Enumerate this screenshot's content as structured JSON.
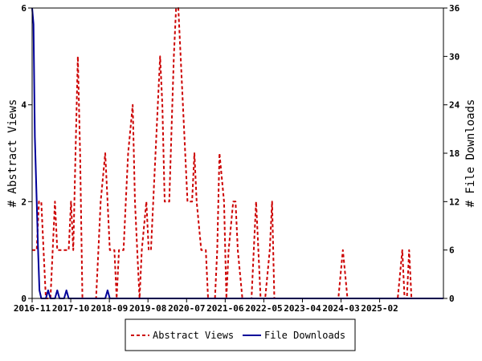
{
  "chart_data": {
    "type": "line",
    "x_tick_labels": [
      "2016-11",
      "2017-10",
      "2018-09",
      "2019-08",
      "2020-07",
      "2021-06",
      "2022-05",
      "2023-04",
      "2024-03",
      "2025-02"
    ],
    "left_axis": {
      "label": "# Abstract Views",
      "ylim": [
        0,
        6
      ],
      "ticks": [
        "0",
        "2",
        "4",
        "6"
      ]
    },
    "right_axis": {
      "label": "# File Downloads",
      "ylim": [
        0,
        36
      ],
      "ticks": [
        "0",
        "6",
        "12",
        "18",
        "24",
        "30",
        "36"
      ]
    },
    "legend": {
      "placement": "bottom-center"
    },
    "series": [
      {
        "name": "Abstract Views",
        "axis": "left",
        "color": "#cc0000",
        "style": "dashed",
        "points": [
          [
            0,
            1
          ],
          [
            1,
            1
          ],
          [
            1.5,
            2
          ],
          [
            2,
            2
          ],
          [
            2.5,
            1
          ],
          [
            3,
            0
          ],
          [
            4,
            0
          ],
          [
            4.5,
            1
          ],
          [
            5,
            2
          ],
          [
            5.5,
            1
          ],
          [
            6,
            1
          ],
          [
            7,
            1
          ],
          [
            8,
            1
          ],
          [
            8.5,
            2
          ],
          [
            9,
            1
          ],
          [
            9.5,
            3
          ],
          [
            10,
            5
          ],
          [
            10.5,
            3
          ],
          [
            11,
            0
          ],
          [
            14,
            0
          ],
          [
            14.5,
            1
          ],
          [
            15,
            2
          ],
          [
            16,
            3
          ],
          [
            16.5,
            2
          ],
          [
            17,
            1
          ],
          [
            18,
            1
          ],
          [
            18.5,
            0
          ],
          [
            19,
            1
          ],
          [
            20,
            1
          ],
          [
            20.5,
            2
          ],
          [
            21,
            3
          ],
          [
            22,
            4
          ],
          [
            22.5,
            2
          ],
          [
            23,
            1
          ],
          [
            23.5,
            0
          ],
          [
            24,
            1
          ],
          [
            25,
            2
          ],
          [
            25.5,
            1
          ],
          [
            26,
            1
          ],
          [
            27,
            3
          ],
          [
            28,
            5
          ],
          [
            28.5,
            4
          ],
          [
            29,
            2
          ],
          [
            30,
            2
          ],
          [
            31,
            5
          ],
          [
            31.5,
            6
          ],
          [
            32,
            6
          ],
          [
            33,
            4
          ],
          [
            34,
            2
          ],
          [
            35,
            2
          ],
          [
            35.5,
            3
          ],
          [
            36,
            2
          ],
          [
            37,
            1
          ],
          [
            38,
            1
          ],
          [
            38.5,
            0
          ],
          [
            40,
            0
          ],
          [
            40.5,
            1
          ],
          [
            41,
            3
          ],
          [
            42,
            2
          ],
          [
            42.5,
            0
          ],
          [
            43,
            1
          ],
          [
            44,
            2
          ],
          [
            44.5,
            2
          ],
          [
            45,
            1
          ],
          [
            46,
            0
          ],
          [
            48,
            0
          ],
          [
            48.5,
            1
          ],
          [
            49,
            2
          ],
          [
            49.5,
            1
          ],
          [
            50,
            0
          ],
          [
            51,
            0
          ],
          [
            52,
            1
          ],
          [
            52.5,
            2
          ],
          [
            53,
            0
          ],
          [
            67,
            0
          ],
          [
            67.5,
            0.5
          ],
          [
            68,
            1
          ],
          [
            68.5,
            0.5
          ],
          [
            69,
            0
          ],
          [
            80,
            0
          ],
          [
            81,
            1
          ],
          [
            81.5,
            0
          ],
          [
            82,
            0
          ],
          [
            82.5,
            1
          ],
          [
            83,
            0
          ],
          [
            90,
            0
          ]
        ]
      },
      {
        "name": "File Downloads",
        "axis": "right",
        "color": "#000099",
        "style": "solid",
        "points": [
          [
            0,
            36
          ],
          [
            0.3,
            34
          ],
          [
            0.6,
            20
          ],
          [
            1,
            12
          ],
          [
            1.3,
            6
          ],
          [
            1.6,
            1
          ],
          [
            2,
            0
          ],
          [
            3,
            0
          ],
          [
            3.5,
            1
          ],
          [
            4,
            0
          ],
          [
            5,
            0
          ],
          [
            5.5,
            1
          ],
          [
            6,
            0
          ],
          [
            7,
            0
          ],
          [
            7.5,
            1
          ],
          [
            8,
            0
          ],
          [
            16,
            0
          ],
          [
            16.5,
            1
          ],
          [
            17,
            0
          ],
          [
            90,
            0
          ]
        ]
      }
    ],
    "x_range": [
      0,
      90
    ]
  }
}
